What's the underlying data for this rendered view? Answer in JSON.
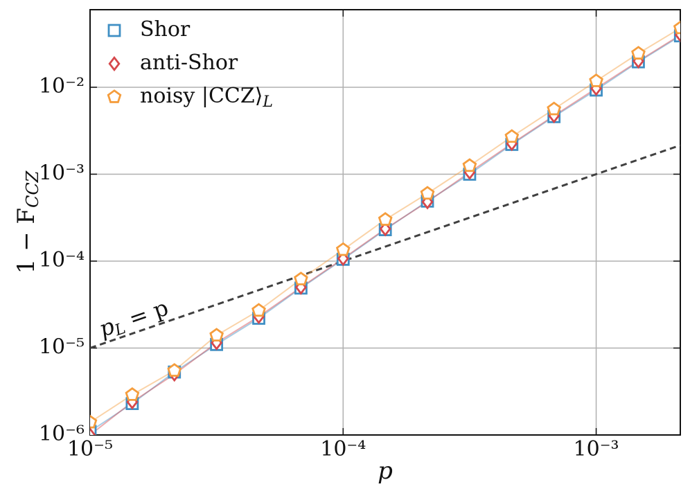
{
  "chart_data": {
    "type": "scatter",
    "log_x": true,
    "log_y": true,
    "grid": true,
    "legend": "upper left",
    "x_label": "p",
    "y_label": {
      "text": "1 − F",
      "subscript": "CCZ"
    },
    "xlim": [
      1e-05,
      0.00215
    ],
    "ylim": [
      1e-06,
      0.078
    ],
    "xticks": [
      {
        "value": 1e-05,
        "label": "10⁻⁵"
      },
      {
        "value": 0.0001,
        "label": "10⁻⁴"
      },
      {
        "value": 0.001,
        "label": "10⁻³"
      }
    ],
    "yticks": [
      {
        "value": 1e-06,
        "label": "10⁻⁶"
      },
      {
        "value": 1e-05,
        "label": "10⁻⁵"
      },
      {
        "value": 0.0001,
        "label": "10⁻⁴"
      },
      {
        "value": 0.001,
        "label": "10⁻³"
      },
      {
        "value": 0.01,
        "label": "10⁻²"
      }
    ],
    "x": [
      1e-05,
      1.468e-05,
      2.154e-05,
      3.162e-05,
      4.642e-05,
      6.813e-05,
      0.0001,
      0.0001468,
      0.0002154,
      0.0003162,
      0.0004642,
      0.0006813,
      0.001,
      0.001468,
      0.002154
    ],
    "series": [
      {
        "name": "Shor",
        "marker": "square",
        "color": "#3f8fc4",
        "values": [
          1.1e-06,
          2.3e-06,
          5.3e-06,
          1.1e-05,
          2.2e-05,
          4.9e-05,
          0.000105,
          0.00023,
          0.00049,
          0.001,
          0.0022,
          0.0046,
          0.0093,
          0.0196,
          0.039
        ]
      },
      {
        "name": "anti-Shor",
        "marker": "diamond",
        "color": "#d6484c",
        "values": [
          1e-06,
          2.4e-06,
          5e-06,
          1.15e-05,
          2.3e-05,
          5e-05,
          0.000107,
          0.000235,
          0.00048,
          0.00105,
          0.00225,
          0.0047,
          0.0097,
          0.02,
          0.04
        ]
      },
      {
        "name": {
          "text": "noisy |CCZ⟩",
          "subscript": "L"
        },
        "marker": "pentagon",
        "color": "#f59d3d",
        "values": [
          1.4e-06,
          2.9e-06,
          5.5e-06,
          1.4e-05,
          2.7e-05,
          6.2e-05,
          0.000135,
          0.0003,
          0.0006,
          0.00125,
          0.0027,
          0.0056,
          0.0118,
          0.0245,
          0.048
        ]
      }
    ],
    "reference_line": {
      "x": [
        1e-05,
        0.00215
      ],
      "values": [
        1e-05,
        0.00215
      ],
      "color": "#404040",
      "style": "dashed"
    },
    "annotation": {
      "text": "p",
      "subscript": "L",
      "suffix": " = p"
    }
  }
}
